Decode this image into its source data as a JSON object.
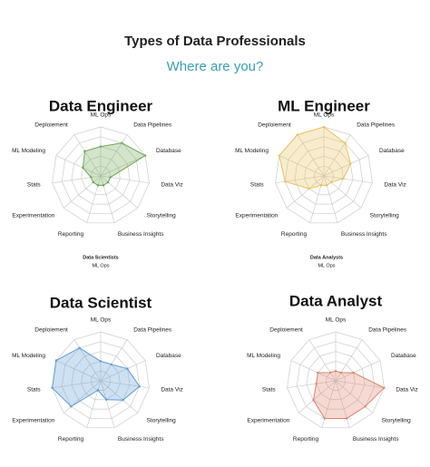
{
  "title": "Types of Data Professionals",
  "subtitle": "Where are you?",
  "captions": [
    [
      "Data Scientists",
      "ML Ops"
    ],
    [
      "Data Analysts",
      "ML Ops"
    ]
  ],
  "chart_data": [
    {
      "type": "radar",
      "title": "Data Engineer",
      "color": "#6aa84f",
      "categories": [
        "ML Ops",
        "Data Pipelines",
        "Database",
        "Data Viz",
        "Storytelling",
        "Business Insights",
        "Reporting",
        "Experimentation",
        "Stats",
        "ML Modeling",
        "Deploiement"
      ],
      "values": [
        3,
        4,
        5,
        1,
        1,
        1,
        1,
        1,
        1,
        2,
        3
      ],
      "rlim": [
        0,
        5
      ],
      "rticks": [
        1,
        2,
        3,
        4,
        5
      ]
    },
    {
      "type": "radar",
      "title": "ML Engineer",
      "color": "#e8c15a",
      "categories": [
        "ML Ops",
        "Data Pipelines",
        "Database",
        "Data Viz",
        "Storytelling",
        "Business Insights",
        "Reporting",
        "Experimentation",
        "Stats",
        "ML Modeling",
        "Deploiement"
      ],
      "values": [
        5,
        4,
        3,
        2,
        1,
        1,
        1,
        2,
        4,
        5,
        5
      ],
      "rlim": [
        0,
        5
      ],
      "rticks": [
        1,
        2,
        3,
        4,
        5
      ]
    },
    {
      "type": "radar",
      "title": "Data Scientist",
      "color": "#5b9bd5",
      "categories": [
        "ML Ops",
        "Data Pipelines",
        "Database",
        "Data Viz",
        "Storytelling",
        "Business Insights",
        "Reporting",
        "Experimentation",
        "Stats",
        "ML Modeling",
        "Deploiement"
      ],
      "values": [
        2,
        2,
        3,
        4,
        3,
        2,
        1,
        4,
        5,
        5,
        4
      ],
      "rlim": [
        0,
        5
      ],
      "rticks": [
        1,
        2,
        3,
        4,
        5
      ]
    },
    {
      "type": "radar",
      "title": "Data Analyst",
      "color": "#e0826a",
      "categories": [
        "ML Ops",
        "Data Pipelines",
        "Database",
        "Data Viz",
        "Storytelling",
        "Business Insights",
        "Reporting",
        "Experimentation",
        "Stats",
        "ML Modeling",
        "Deploiement"
      ],
      "values": [
        1,
        1,
        2,
        5,
        4,
        4,
        4,
        3,
        2,
        2,
        1
      ],
      "rlim": [
        0,
        5
      ],
      "rticks": [
        1,
        2,
        3,
        4,
        5
      ]
    }
  ]
}
